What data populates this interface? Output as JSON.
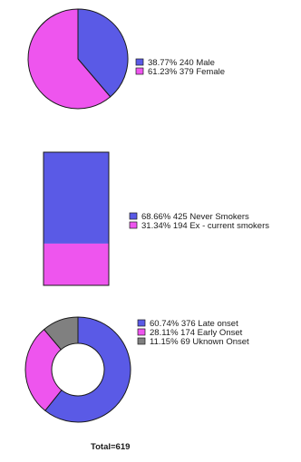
{
  "colors": {
    "blue": "#5a5ae6",
    "magenta": "#ee55ee",
    "gray": "#808080",
    "outline": "#1a1a1a"
  },
  "chart_data": [
    {
      "type": "pie",
      "series": [
        {
          "percent": "38.77%",
          "count": 240,
          "label": "Male",
          "color_key": "blue"
        },
        {
          "percent": "61.23%",
          "count": 379,
          "label": "Female",
          "color_key": "magenta"
        }
      ]
    },
    {
      "type": "bar",
      "stacked": true,
      "series": [
        {
          "percent": "68.66%",
          "count": 425,
          "label": "Never Smokers",
          "color_key": "blue"
        },
        {
          "percent": "31.34%",
          "count": 194,
          "label": "Ex - current smokers",
          "color_key": "magenta"
        }
      ]
    },
    {
      "type": "donut",
      "series": [
        {
          "percent": "60.74%",
          "count": 376,
          "label": "Late onset",
          "color_key": "blue"
        },
        {
          "percent": "28.11%",
          "count": 174,
          "label": "Early Onset",
          "color_key": "magenta"
        },
        {
          "percent": "11.15%",
          "count": 69,
          "label": "Uknown Onset",
          "color_key": "gray"
        }
      ]
    }
  ],
  "total_label": "Total=619"
}
